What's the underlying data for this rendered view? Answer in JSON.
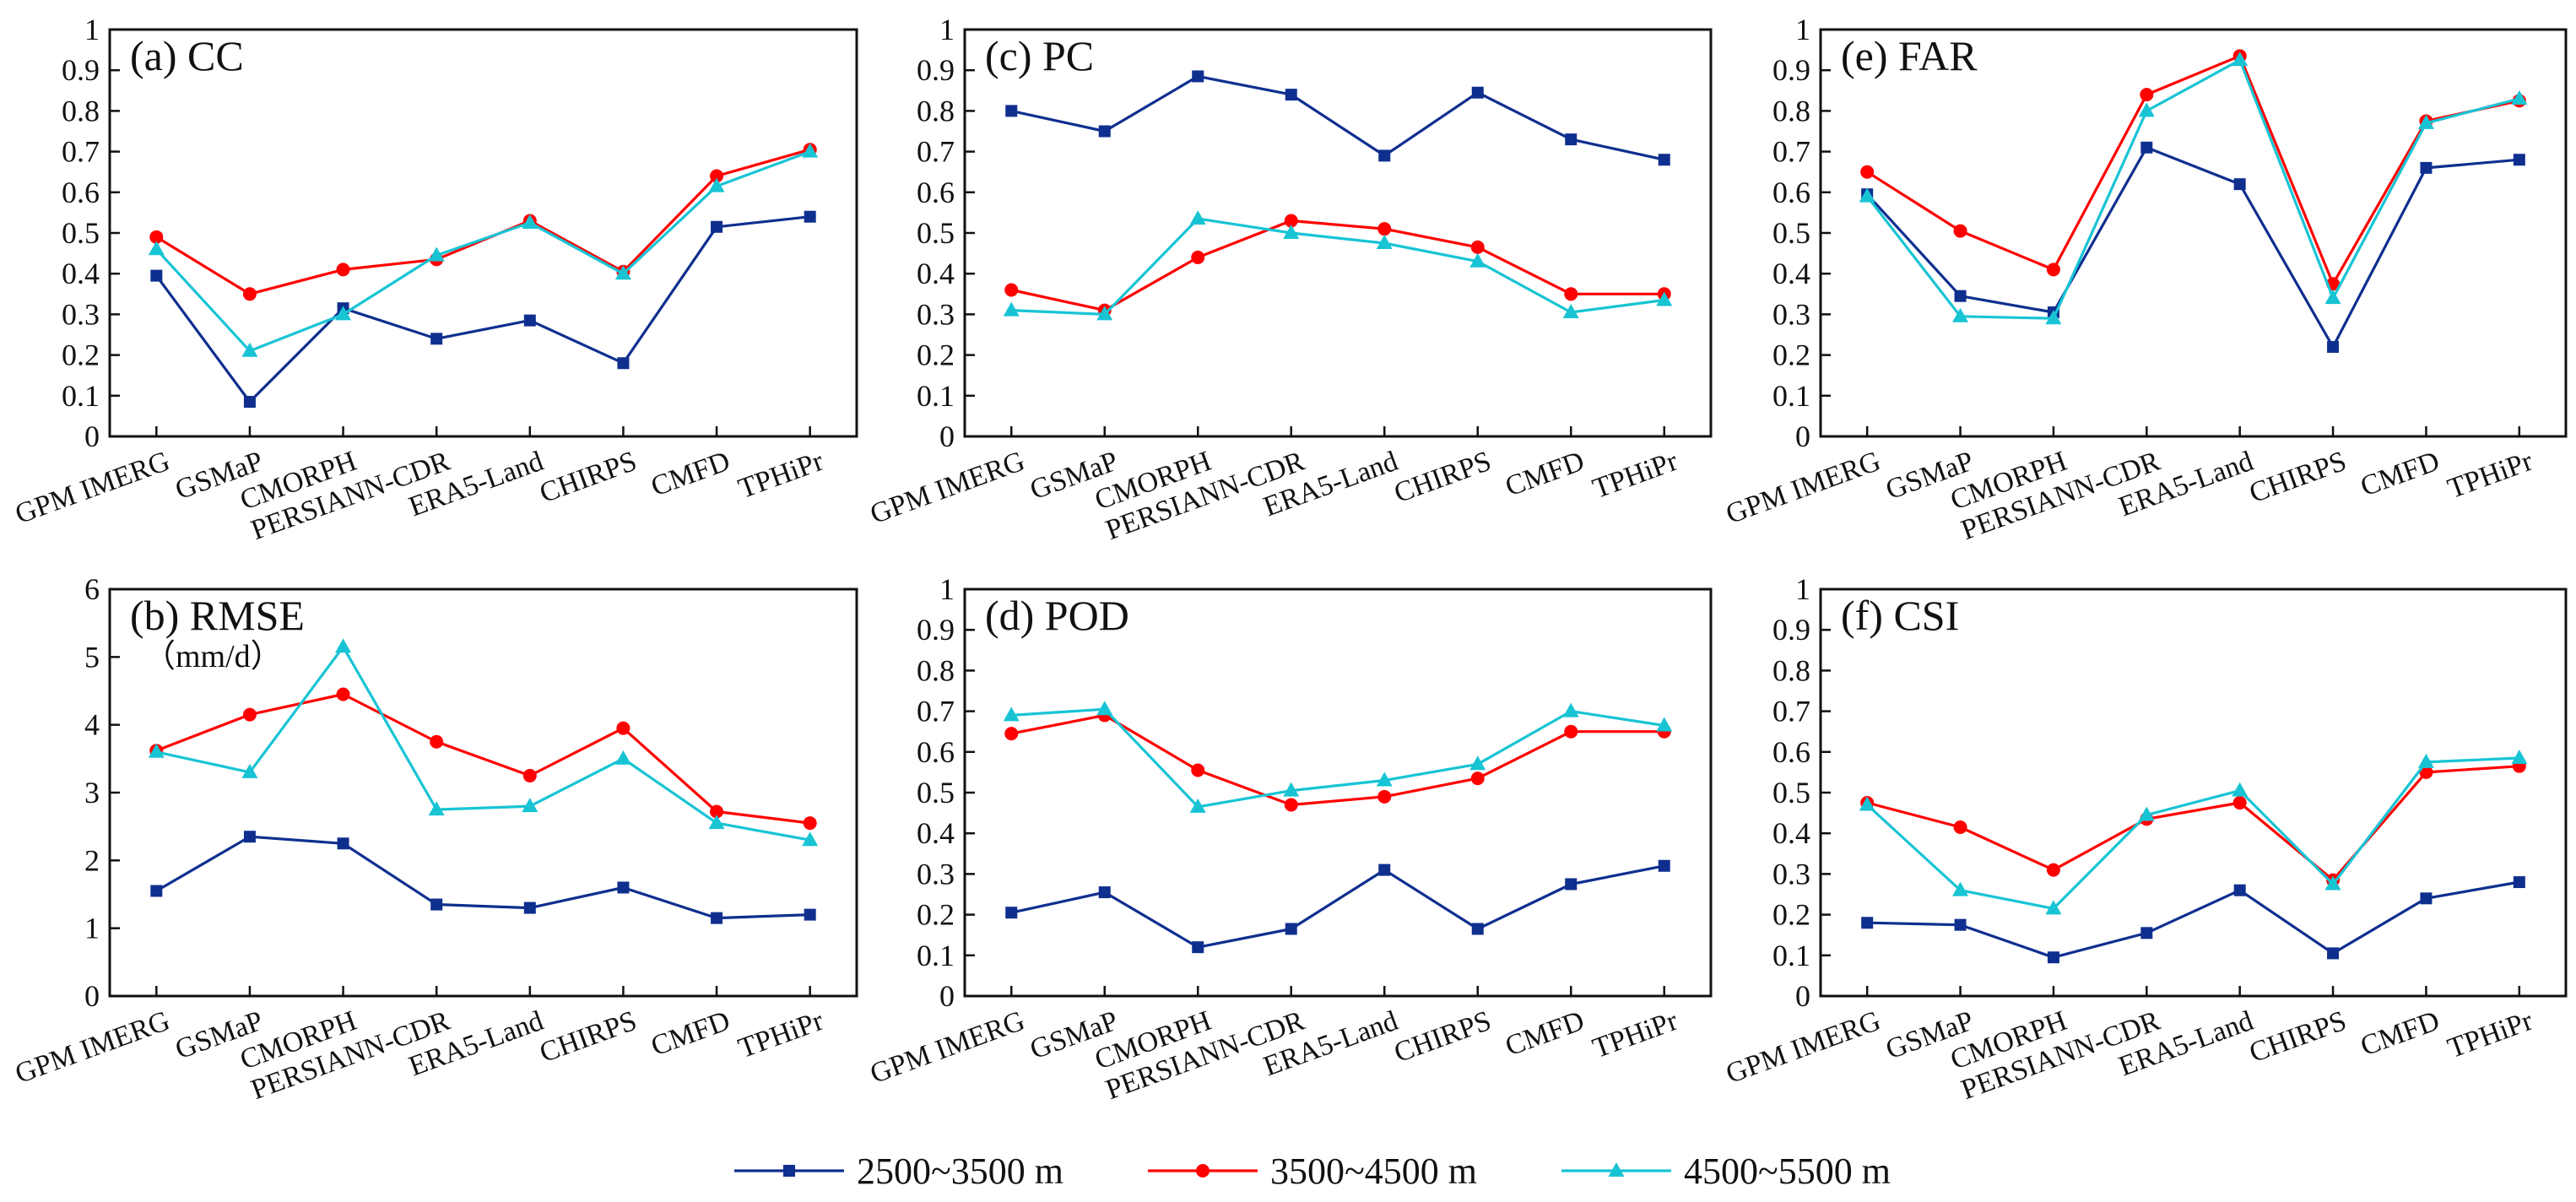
{
  "series_styles": [
    {
      "name": "2500~3500 m",
      "color": "#0f2f8f",
      "marker": "square"
    },
    {
      "name": "3500~4500 m",
      "color": "#ff0000",
      "marker": "circle"
    },
    {
      "name": "4500~5500 m",
      "color": "#18c4d4",
      "marker": "triangle"
    }
  ],
  "legend": {
    "placement": "bottom-center",
    "entries": [
      "2500~3500 m",
      "3500~4500 m",
      "4500~5500 m"
    ]
  },
  "chart_data": [
    {
      "type": "line",
      "title": "(a) CC",
      "subtitle": "",
      "categories": [
        "GPM IMERG",
        "GSMaP",
        "CMORPH",
        "PERSIANN-CDR",
        "ERA5-Land",
        "CHIRPS",
        "CMFD",
        "TPHiPr"
      ],
      "ylim": [
        0,
        1
      ],
      "yticks": [
        0,
        0.1,
        0.2,
        0.3,
        0.4,
        0.5,
        0.6,
        0.7,
        0.8,
        0.9,
        1
      ],
      "ytick_labels": [
        "0",
        "0.1",
        "0.2",
        "0.3",
        "0.4",
        "0.5",
        "0.6",
        "0.7",
        "0.8",
        "0.9",
        "1"
      ],
      "series": [
        {
          "name": "2500~3500 m",
          "values": [
            0.395,
            0.085,
            0.315,
            0.24,
            0.285,
            0.18,
            0.515,
            0.54
          ]
        },
        {
          "name": "3500~4500 m",
          "values": [
            0.49,
            0.35,
            0.41,
            0.435,
            0.53,
            0.405,
            0.64,
            0.705
          ]
        },
        {
          "name": "4500~5500 m",
          "values": [
            0.46,
            0.21,
            0.3,
            0.445,
            0.525,
            0.4,
            0.615,
            0.7
          ]
        }
      ]
    },
    {
      "type": "line",
      "title": "(c) PC",
      "subtitle": "",
      "categories": [
        "GPM IMERG",
        "GSMaP",
        "CMORPH",
        "PERSIANN-CDR",
        "ERA5-Land",
        "CHIRPS",
        "CMFD",
        "TPHiPr"
      ],
      "ylim": [
        0,
        1
      ],
      "yticks": [
        0,
        0.1,
        0.2,
        0.3,
        0.4,
        0.5,
        0.6,
        0.7,
        0.8,
        0.9,
        1
      ],
      "ytick_labels": [
        "0",
        "0.1",
        "0.2",
        "0.3",
        "0.4",
        "0.5",
        "0.6",
        "0.7",
        "0.8",
        "0.9",
        "1"
      ],
      "series": [
        {
          "name": "2500~3500 m",
          "values": [
            0.8,
            0.75,
            0.885,
            0.84,
            0.69,
            0.845,
            0.73,
            0.68
          ]
        },
        {
          "name": "3500~4500 m",
          "values": [
            0.36,
            0.31,
            0.44,
            0.53,
            0.51,
            0.465,
            0.35,
            0.35
          ]
        },
        {
          "name": "4500~5500 m",
          "values": [
            0.31,
            0.3,
            0.535,
            0.5,
            0.475,
            0.43,
            0.305,
            0.335
          ]
        }
      ]
    },
    {
      "type": "line",
      "title": "(e) FAR",
      "subtitle": "",
      "categories": [
        "GPM IMERG",
        "GSMaP",
        "CMORPH",
        "PERSIANN-CDR",
        "ERA5-Land",
        "CHIRPS",
        "CMFD",
        "TPHiPr"
      ],
      "ylim": [
        0,
        1
      ],
      "yticks": [
        0,
        0.1,
        0.2,
        0.3,
        0.4,
        0.5,
        0.6,
        0.7,
        0.8,
        0.9,
        1
      ],
      "ytick_labels": [
        "0",
        "0.1",
        "0.2",
        "0.3",
        "0.4",
        "0.5",
        "0.6",
        "0.7",
        "0.8",
        "0.9",
        "1"
      ],
      "series": [
        {
          "name": "2500~3500 m",
          "values": [
            0.595,
            0.345,
            0.305,
            0.71,
            0.62,
            0.22,
            0.66,
            0.68
          ]
        },
        {
          "name": "3500~4500 m",
          "values": [
            0.65,
            0.505,
            0.41,
            0.84,
            0.935,
            0.375,
            0.775,
            0.825
          ]
        },
        {
          "name": "4500~5500 m",
          "values": [
            0.59,
            0.295,
            0.29,
            0.8,
            0.925,
            0.34,
            0.77,
            0.83
          ]
        }
      ]
    },
    {
      "type": "line",
      "title": "(b) RMSE",
      "subtitle": "（mm/d）",
      "categories": [
        "GPM IMERG",
        "GSMaP",
        "CMORPH",
        "PERSIANN-CDR",
        "ERA5-Land",
        "CHIRPS",
        "CMFD",
        "TPHiPr"
      ],
      "ylim": [
        0,
        6
      ],
      "yticks": [
        0,
        1,
        2,
        3,
        4,
        5,
        6
      ],
      "ytick_labels": [
        "0",
        "1",
        "2",
        "3",
        "4",
        "5",
        "6"
      ],
      "series": [
        {
          "name": "2500~3500 m",
          "values": [
            1.55,
            2.35,
            2.25,
            1.35,
            1.3,
            1.6,
            1.15,
            1.2
          ]
        },
        {
          "name": "3500~4500 m",
          "values": [
            3.62,
            4.15,
            4.45,
            3.75,
            3.25,
            3.95,
            2.72,
            2.55
          ]
        },
        {
          "name": "4500~5500 m",
          "values": [
            3.6,
            3.3,
            5.15,
            2.75,
            2.8,
            3.5,
            2.55,
            2.3
          ]
        }
      ]
    },
    {
      "type": "line",
      "title": "(d) POD",
      "subtitle": "",
      "categories": [
        "GPM IMERG",
        "GSMaP",
        "CMORPH",
        "PERSIANN-CDR",
        "ERA5-Land",
        "CHIRPS",
        "CMFD",
        "TPHiPr"
      ],
      "ylim": [
        0,
        1
      ],
      "yticks": [
        0,
        0.1,
        0.2,
        0.3,
        0.4,
        0.5,
        0.6,
        0.7,
        0.8,
        0.9,
        1
      ],
      "ytick_labels": [
        "0",
        "0.1",
        "0.2",
        "0.3",
        "0.4",
        "0.5",
        "0.6",
        "0.7",
        "0.8",
        "0.9",
        "1"
      ],
      "series": [
        {
          "name": "2500~3500 m",
          "values": [
            0.205,
            0.255,
            0.12,
            0.165,
            0.31,
            0.165,
            0.275,
            0.32
          ]
        },
        {
          "name": "3500~4500 m",
          "values": [
            0.645,
            0.69,
            0.555,
            0.47,
            0.49,
            0.535,
            0.65,
            0.65
          ]
        },
        {
          "name": "4500~5500 m",
          "values": [
            0.69,
            0.705,
            0.465,
            0.505,
            0.53,
            0.57,
            0.7,
            0.665
          ]
        }
      ]
    },
    {
      "type": "line",
      "title": "(f) CSI",
      "subtitle": "",
      "categories": [
        "GPM IMERG",
        "GSMaP",
        "CMORPH",
        "PERSIANN-CDR",
        "ERA5-Land",
        "CHIRPS",
        "CMFD",
        "TPHiPr"
      ],
      "ylim": [
        0,
        1
      ],
      "yticks": [
        0,
        0.1,
        0.2,
        0.3,
        0.4,
        0.5,
        0.6,
        0.7,
        0.8,
        0.9,
        1
      ],
      "ytick_labels": [
        "0",
        "0.1",
        "0.2",
        "0.3",
        "0.4",
        "0.5",
        "0.6",
        "0.7",
        "0.8",
        "0.9",
        "1"
      ],
      "series": [
        {
          "name": "2500~3500 m",
          "values": [
            0.18,
            0.175,
            0.095,
            0.155,
            0.26,
            0.105,
            0.24,
            0.28
          ]
        },
        {
          "name": "3500~4500 m",
          "values": [
            0.475,
            0.415,
            0.31,
            0.435,
            0.475,
            0.285,
            0.55,
            0.565
          ]
        },
        {
          "name": "4500~5500 m",
          "values": [
            0.47,
            0.26,
            0.215,
            0.445,
            0.505,
            0.275,
            0.575,
            0.585
          ]
        }
      ]
    }
  ]
}
